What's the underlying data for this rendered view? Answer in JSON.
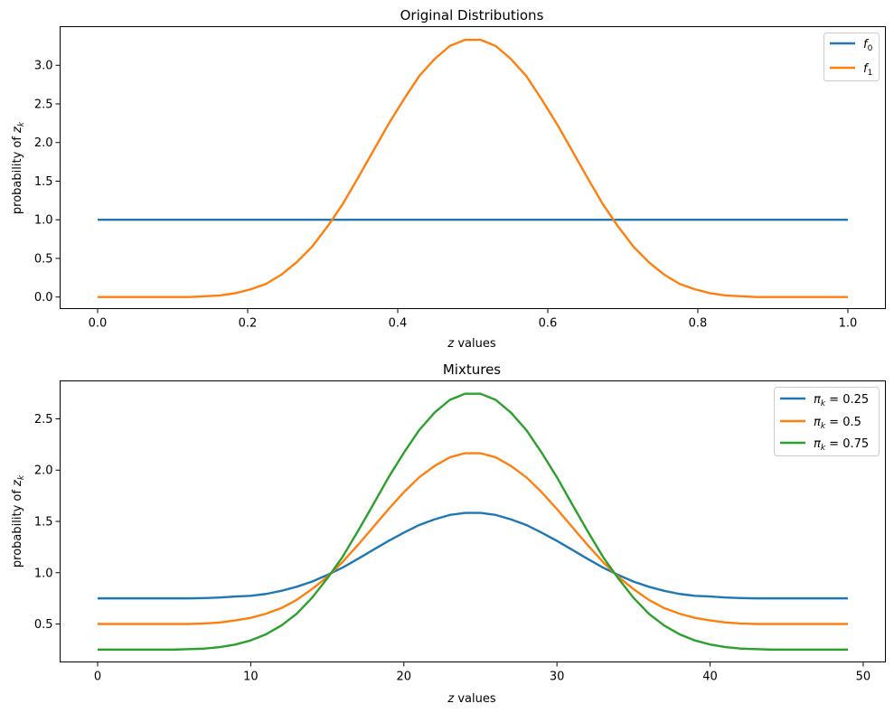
{
  "chart_data": [
    {
      "type": "line",
      "title": "Original Distributions",
      "xlabel": "z values",
      "ylabel": "probability of z_k",
      "xlim": [
        -0.05,
        1.05
      ],
      "ylim": [
        -0.15,
        3.5
      ],
      "xticks": [
        0.0,
        0.2,
        0.4,
        0.6,
        0.8,
        1.0
      ],
      "xtick_labels": [
        "0.0",
        "0.2",
        "0.4",
        "0.6",
        "0.8",
        "1.0"
      ],
      "yticks": [
        0.0,
        0.5,
        1.0,
        1.5,
        2.0,
        2.5,
        3.0
      ],
      "ytick_labels": [
        "0.0",
        "0.5",
        "1.0",
        "1.5",
        "2.0",
        "2.5",
        "3.0"
      ],
      "legend_position": "top-right",
      "series": [
        {
          "name": "f",
          "name_sub": "0",
          "color": "#1f77b4",
          "x": [
            0.0,
            1.0
          ],
          "y": [
            1.0,
            1.0
          ]
        },
        {
          "name": "f",
          "name_sub": "1",
          "color": "#ff7f0e",
          "x": [
            0.0,
            0.0204,
            0.0408,
            0.0612,
            0.0816,
            0.102,
            0.1224,
            0.1429,
            0.1633,
            0.1837,
            0.2041,
            0.2245,
            0.2449,
            0.2653,
            0.2857,
            0.3061,
            0.3265,
            0.3469,
            0.3673,
            0.3878,
            0.4082,
            0.4286,
            0.449,
            0.4694,
            0.4898,
            0.5102,
            0.5306,
            0.551,
            0.5714,
            0.5918,
            0.6122,
            0.6327,
            0.6531,
            0.6735,
            0.6939,
            0.7143,
            0.7347,
            0.7551,
            0.7755,
            0.7959,
            0.8163,
            0.8367,
            0.8571,
            0.8776,
            0.898,
            0.9184,
            0.9388,
            0.9592,
            0.9796,
            1.0
          ],
          "y": [
            0.0,
            0.0,
            0.0,
            0.0,
            0.0,
            0.0,
            0.0,
            0.01,
            0.02,
            0.05,
            0.1,
            0.17,
            0.29,
            0.45,
            0.65,
            0.91,
            1.2,
            1.54,
            1.89,
            2.24,
            2.56,
            2.86,
            3.08,
            3.25,
            3.33,
            3.33,
            3.25,
            3.08,
            2.86,
            2.56,
            2.24,
            1.89,
            1.54,
            1.2,
            0.91,
            0.65,
            0.45,
            0.29,
            0.17,
            0.1,
            0.05,
            0.02,
            0.01,
            0.0,
            0.0,
            0.0,
            0.0,
            0.0,
            0.0,
            0.0
          ]
        }
      ]
    },
    {
      "type": "line",
      "title": "Mixtures",
      "xlabel": "z values",
      "ylabel": "probability of z_k",
      "xlim": [
        -2.45,
        51.45
      ],
      "ylim": [
        0.13,
        2.87
      ],
      "xticks": [
        0,
        10,
        20,
        30,
        40,
        50
      ],
      "xtick_labels": [
        "0",
        "10",
        "20",
        "30",
        "40",
        "50"
      ],
      "yticks": [
        0.5,
        1.0,
        1.5,
        2.0,
        2.5
      ],
      "ytick_labels": [
        "0.5",
        "1.0",
        "1.5",
        "2.0",
        "2.5"
      ],
      "legend_position": "top-right",
      "series": [
        {
          "name": "π",
          "name_sub": "k",
          "name_suffix": " = 0.25",
          "color": "#1f77b4",
          "x": [
            0,
            1,
            2,
            3,
            4,
            5,
            6,
            7,
            8,
            9,
            10,
            11,
            12,
            13,
            14,
            15,
            16,
            17,
            18,
            19,
            20,
            21,
            22,
            23,
            24,
            25,
            26,
            27,
            28,
            29,
            30,
            31,
            32,
            33,
            34,
            35,
            36,
            37,
            38,
            39,
            40,
            41,
            42,
            43,
            44,
            45,
            46,
            47,
            48,
            49
          ],
          "y": [
            0.75,
            0.75,
            0.75,
            0.75,
            0.75,
            0.75,
            0.75,
            0.753,
            0.758,
            0.768,
            0.775,
            0.793,
            0.823,
            0.863,
            0.913,
            0.978,
            1.05,
            1.135,
            1.223,
            1.31,
            1.39,
            1.465,
            1.52,
            1.563,
            1.583,
            1.583,
            1.563,
            1.52,
            1.465,
            1.39,
            1.31,
            1.223,
            1.135,
            1.05,
            0.978,
            0.913,
            0.863,
            0.823,
            0.793,
            0.775,
            0.768,
            0.758,
            0.753,
            0.75,
            0.75,
            0.75,
            0.75,
            0.75,
            0.75,
            0.75
          ]
        },
        {
          "name": "π",
          "name_sub": "k",
          "name_suffix": " = 0.5",
          "color": "#ff7f0e",
          "x": [
            0,
            1,
            2,
            3,
            4,
            5,
            6,
            7,
            8,
            9,
            10,
            11,
            12,
            13,
            14,
            15,
            16,
            17,
            18,
            19,
            20,
            21,
            22,
            23,
            24,
            25,
            26,
            27,
            28,
            29,
            30,
            31,
            32,
            33,
            34,
            35,
            36,
            37,
            38,
            39,
            40,
            41,
            42,
            43,
            44,
            45,
            46,
            47,
            48,
            49
          ],
          "y": [
            0.5,
            0.5,
            0.5,
            0.5,
            0.5,
            0.5,
            0.5,
            0.505,
            0.515,
            0.535,
            0.56,
            0.6,
            0.655,
            0.735,
            0.84,
            0.96,
            1.105,
            1.27,
            1.445,
            1.62,
            1.785,
            1.93,
            2.04,
            2.125,
            2.165,
            2.165,
            2.125,
            2.04,
            1.93,
            1.785,
            1.62,
            1.445,
            1.27,
            1.105,
            0.96,
            0.84,
            0.735,
            0.655,
            0.6,
            0.56,
            0.535,
            0.515,
            0.505,
            0.5,
            0.5,
            0.5,
            0.5,
            0.5,
            0.5,
            0.5
          ]
        },
        {
          "name": "π",
          "name_sub": "k",
          "name_suffix": " = 0.75",
          "color": "#2ca02c",
          "x": [
            0,
            1,
            2,
            3,
            4,
            5,
            6,
            7,
            8,
            9,
            10,
            11,
            12,
            13,
            14,
            15,
            16,
            17,
            18,
            19,
            20,
            21,
            22,
            23,
            24,
            25,
            26,
            27,
            28,
            29,
            30,
            31,
            32,
            33,
            34,
            35,
            36,
            37,
            38,
            39,
            40,
            41,
            42,
            43,
            44,
            45,
            46,
            47,
            48,
            49
          ],
          "y": [
            0.25,
            0.25,
            0.25,
            0.25,
            0.25,
            0.25,
            0.255,
            0.26,
            0.275,
            0.3,
            0.34,
            0.4,
            0.485,
            0.6,
            0.755,
            0.945,
            1.155,
            1.405,
            1.665,
            1.93,
            2.17,
            2.39,
            2.56,
            2.685,
            2.745,
            2.745,
            2.685,
            2.56,
            2.39,
            2.17,
            1.93,
            1.665,
            1.405,
            1.155,
            0.945,
            0.755,
            0.6,
            0.485,
            0.4,
            0.34,
            0.3,
            0.275,
            0.26,
            0.255,
            0.25,
            0.25,
            0.25,
            0.25,
            0.25,
            0.25
          ]
        }
      ]
    }
  ]
}
